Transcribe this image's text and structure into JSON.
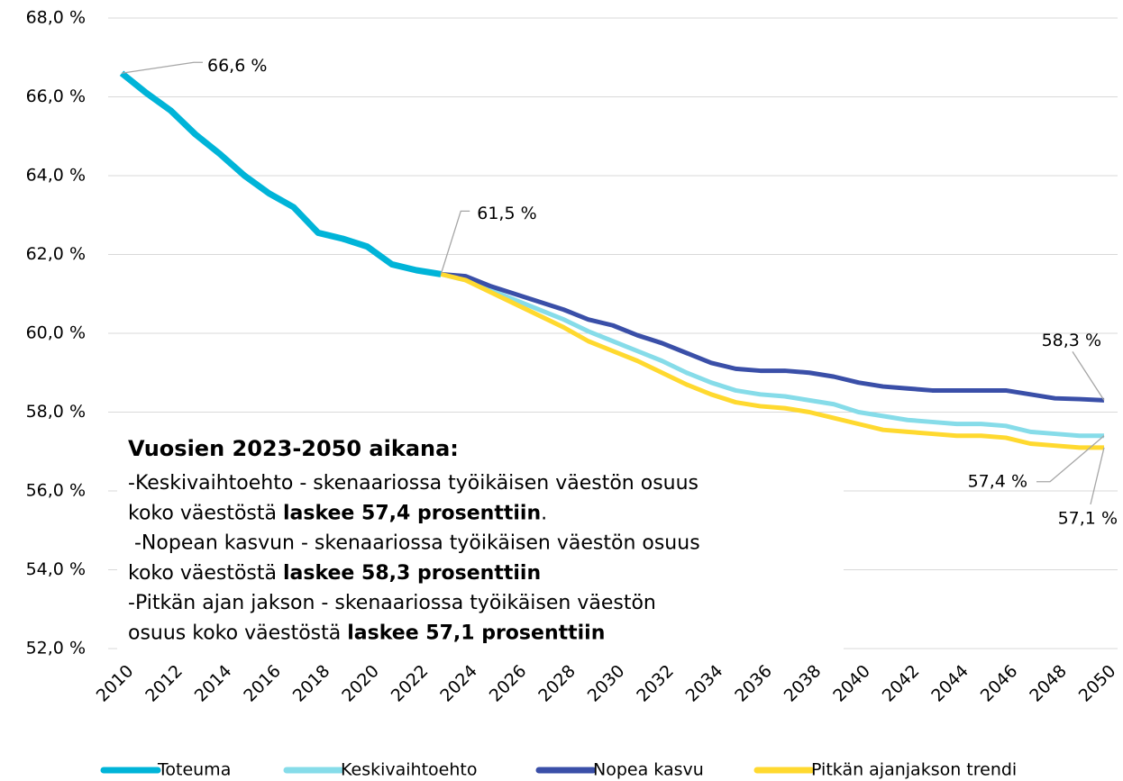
{
  "chart_data": {
    "type": "line",
    "x": [
      2010,
      2011,
      2012,
      2013,
      2014,
      2015,
      2016,
      2017,
      2018,
      2019,
      2020,
      2021,
      2022,
      2023,
      2024,
      2025,
      2026,
      2027,
      2028,
      2029,
      2030,
      2031,
      2032,
      2033,
      2034,
      2035,
      2036,
      2037,
      2038,
      2039,
      2040,
      2041,
      2042,
      2043,
      2044,
      2045,
      2046,
      2047,
      2048,
      2049,
      2050
    ],
    "xlim": [
      2010,
      2050
    ],
    "xticks": [
      2010,
      2012,
      2014,
      2016,
      2018,
      2020,
      2022,
      2024,
      2026,
      2028,
      2030,
      2032,
      2034,
      2036,
      2038,
      2040,
      2042,
      2044,
      2046,
      2048,
      2050
    ],
    "ylim": [
      52,
      68
    ],
    "yticks": [
      {
        "value": 52,
        "label": "52,0 %"
      },
      {
        "value": 54,
        "label": "54,0 %"
      },
      {
        "value": 56,
        "label": "56,0 %"
      },
      {
        "value": 58,
        "label": "58,0 %"
      },
      {
        "value": 60,
        "label": "60,0 %"
      },
      {
        "value": 62,
        "label": "62,0 %"
      },
      {
        "value": 64,
        "label": "64,0 %"
      },
      {
        "value": 66,
        "label": "66,0 %"
      },
      {
        "value": 68,
        "label": "68,0 %"
      }
    ],
    "grid": true,
    "legend": "bottom",
    "series": [
      {
        "name": "Toteuma",
        "color": "#00b4d8",
        "values": [
          66.6,
          66.1,
          65.65,
          65.05,
          64.55,
          64.0,
          63.55,
          63.2,
          62.55,
          62.4,
          62.2,
          61.75,
          61.6,
          61.5,
          null,
          null,
          null,
          null,
          null,
          null,
          null,
          null,
          null,
          null,
          null,
          null,
          null,
          null,
          null,
          null,
          null,
          null,
          null,
          null,
          null,
          null,
          null,
          null,
          null,
          null,
          null
        ]
      },
      {
        "name": "Keskivaihtoehto",
        "color": "#86dce9",
        "values": [
          null,
          null,
          null,
          null,
          null,
          null,
          null,
          null,
          null,
          null,
          null,
          null,
          null,
          61.5,
          61.35,
          61.1,
          60.85,
          60.6,
          60.35,
          60.05,
          59.8,
          59.55,
          59.3,
          59.0,
          58.75,
          58.55,
          58.45,
          58.4,
          58.3,
          58.2,
          58.0,
          57.9,
          57.8,
          57.75,
          57.7,
          57.7,
          57.65,
          57.5,
          57.45,
          57.4,
          57.4
        ]
      },
      {
        "name": "Nopea kasvu",
        "color": "#3a4fa8",
        "values": [
          null,
          null,
          null,
          null,
          null,
          null,
          null,
          null,
          null,
          null,
          null,
          null,
          null,
          61.5,
          61.45,
          61.2,
          61.0,
          60.8,
          60.6,
          60.35,
          60.2,
          59.95,
          59.75,
          59.5,
          59.25,
          59.1,
          59.05,
          59.05,
          59.0,
          58.9,
          58.75,
          58.65,
          58.6,
          58.55,
          58.55,
          58.55,
          58.55,
          58.45,
          58.35,
          58.33,
          58.3
        ]
      },
      {
        "name": "Pitkän ajanjakson trendi",
        "color": "#ffd92f",
        "values": [
          null,
          null,
          null,
          null,
          null,
          null,
          null,
          null,
          null,
          null,
          null,
          null,
          null,
          61.5,
          61.35,
          61.05,
          60.75,
          60.45,
          60.15,
          59.8,
          59.55,
          59.3,
          59.0,
          58.7,
          58.45,
          58.25,
          58.15,
          58.1,
          58.0,
          57.85,
          57.7,
          57.55,
          57.5,
          57.45,
          57.4,
          57.4,
          57.35,
          57.2,
          57.15,
          57.1,
          57.1
        ]
      }
    ],
    "annotations": [
      {
        "text": "66,6 %",
        "x": 2010,
        "y": 66.6
      },
      {
        "text": "61,5 %",
        "x": 2023,
        "y": 61.5
      },
      {
        "text": "58,3 %",
        "x": 2050,
        "y": 58.3
      },
      {
        "text": "57,4 %",
        "x": 2050,
        "y": 57.4
      },
      {
        "text": "57,1 %",
        "x": 2050,
        "y": 57.1
      }
    ],
    "text_box": {
      "heading": "Vuosien 2023-2050 aikana:",
      "lines": [
        [
          {
            "text": "-Keskivaihtoehto - skenaariossa työikäisen väestön osuus"
          }
        ],
        [
          {
            "text": "koko väestöstä "
          },
          {
            "text": "laskee 57,4 prosenttiin",
            "bold": true
          },
          {
            "text": "."
          }
        ],
        [
          {
            "text": " -Nopean kasvun - skenaariossa työikäisen väestön osuus"
          }
        ],
        [
          {
            "text": "koko väestöstä "
          },
          {
            "text": "laskee 58,3 prosenttiin",
            "bold": true
          }
        ],
        [
          {
            "text": "-Pitkän ajan jakson - skenaariossa työikäisen väestön"
          }
        ],
        [
          {
            "text": "osuus koko väestöstä "
          },
          {
            "text": "laskee 57,1 prosenttiin",
            "bold": true
          }
        ]
      ]
    }
  }
}
